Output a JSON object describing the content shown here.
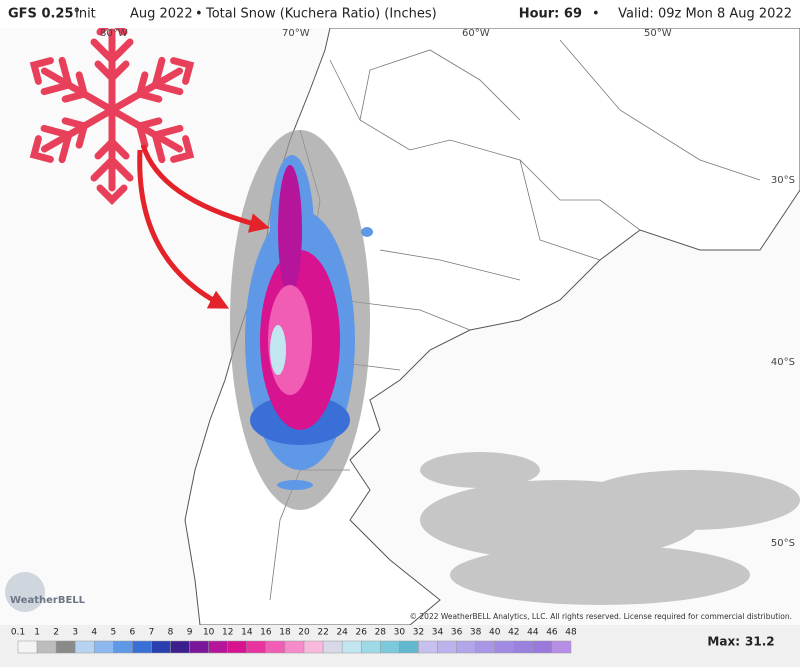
{
  "header": {
    "model": "GFS 0.25°",
    "init_prefix": "Init",
    "init_date": "Aug 2022",
    "product": "Total Snow (Kuchera Ratio) (Inches)",
    "hour": "Hour: 69",
    "valid": "Valid: 09z Mon 8 Aug 2022"
  },
  "map": {
    "lon_labels": [
      "80°W",
      "70°W",
      "60°W",
      "50°W"
    ],
    "lat_labels": [
      "30°S",
      "40°S",
      "50°S"
    ],
    "copyright": "© 2022 WeatherBELL Analytics, LLC. All rights reserved. License required for commercial distribution.",
    "logo": "WeatherBELL"
  },
  "legend": {
    "labels": [
      0.1,
      1,
      2,
      3,
      4,
      5,
      6,
      7,
      8,
      9,
      10,
      12,
      14,
      16,
      18,
      20,
      22,
      24,
      26,
      28,
      30,
      32,
      34,
      36,
      38,
      40,
      42,
      44,
      46,
      48
    ],
    "colors": [
      "#f4f4f4",
      "#bdbdbd",
      "#8a8a8a",
      "#b6d4f2",
      "#8db9ee",
      "#5f98e6",
      "#3a6fd8",
      "#2a3fb0",
      "#3b1f8f",
      "#7a1699",
      "#b5159a",
      "#d8138f",
      "#e9339f",
      "#f15cb4",
      "#f58bc9",
      "#f8b9dc",
      "#d8d8e8",
      "#c2e6f0",
      "#9ed9e8",
      "#7cc9dc",
      "#62b8cf",
      "#c7c0ef",
      "#bdb3ec",
      "#b3a5ea",
      "#a997e6",
      "#a08ae2",
      "#9a80df",
      "#9a78dc",
      "#b78ee6"
    ],
    "max_label": "Max:",
    "max_value": 31.2
  }
}
